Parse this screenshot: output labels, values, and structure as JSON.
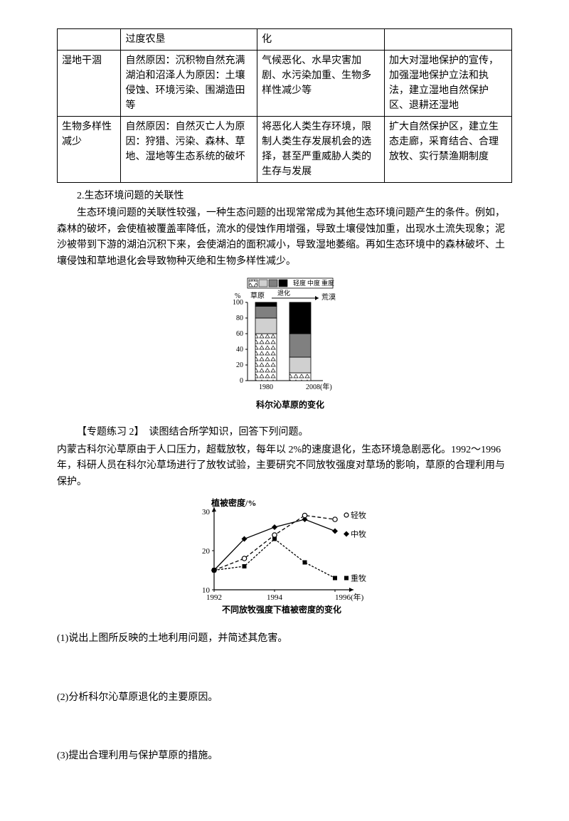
{
  "table": {
    "row0": {
      "c1": "",
      "c2": "过度农垦",
      "c3": "化",
      "c4": ""
    },
    "row1": {
      "c1": "湿地干涸",
      "c2": "自然原因：沉积物自然充满湖泊和沼泽人为原因：土壤侵蚀、环境污染、围湖造田等",
      "c3": "气候恶化、水旱灾害加剧、水污染加重、生物多样性减少等",
      "c4": "加大对湿地保护的宣传，加强湿地保护立法和执法，建立湿地自然保护区、退耕还湿地"
    },
    "row2": {
      "c1": "生物多样性减少",
      "c2": "自然原因：自然灭亡人为原因：狩猎、污染、森林、草地、湿地等生态系统的破坏",
      "c3": "将恶化人类生存环境，限制人类生存发展机会的选择，甚至严重威胁人类的生存与发展",
      "c4": "扩大自然保护区，建立生态走廊，采育结合、合理放牧、实行禁渔期制度"
    }
  },
  "section2": {
    "heading": "2.生态环境问题的关联性",
    "p1": "生态环境问题的关联性较强，一种生态问题的出现常常成为其他生态环境问题产生的条件。例如，森林的破坏，会使植被覆盖率降低，流水的侵蚀作用增强，导致土壤侵蚀加重，出现水土流失现象；泥沙被带到下游的湖泊沉积下来，会使湖泊的面积减小，导致湿地萎缩。再如生态环境中的森林破坏、土壤侵蚀和草地退化会导致物种灭绝和生物多样性减少。"
  },
  "chart1": {
    "legend_items": [
      "轻度",
      "中度",
      "重度"
    ],
    "ylabel": "%",
    "left_label": "草原",
    "mid_label": "退化",
    "right_label": "荒漠",
    "ymax": 100,
    "ytick_step": 20,
    "yticks": [
      "100",
      "80",
      "60",
      "40",
      "20",
      "0"
    ],
    "xticks": [
      "1980",
      "2008(年)"
    ],
    "caption": "科尔沁草原的变化",
    "bar1_segments": [
      {
        "height": 60,
        "fill": "triangle"
      },
      {
        "height": 20,
        "fill": "ltgray"
      },
      {
        "height": 15,
        "fill": "gray"
      },
      {
        "height": 5,
        "fill": "black"
      }
    ],
    "bar2_segments": [
      {
        "height": 10,
        "fill": "triangle"
      },
      {
        "height": 20,
        "fill": "ltgray"
      },
      {
        "height": 30,
        "fill": "gray"
      },
      {
        "height": 40,
        "fill": "black"
      }
    ],
    "colors": {
      "triangle": "#ffffff",
      "ltgray": "#d0d0d0",
      "gray": "#808080",
      "black": "#000000"
    }
  },
  "exercise": {
    "label": "【专题练习 2】　读图结合所学知识，回答下列问题。",
    "intro": "内蒙古科尔沁草原由于人口压力，超载放牧，每年以 2%的速度退化，生态环境急剧恶化。1992～1996 年，科研人员在科尔沁草场进行了放牧试验，主要研究不同放牧强度对草场的影响，草原的合理利用与保护。"
  },
  "chart2": {
    "ylabel": "植被密度/%",
    "ymax": 30,
    "ymin": 10,
    "ytick_step": 10,
    "yticks": [
      "30",
      "20",
      "10"
    ],
    "xticks": [
      "1992",
      "1994",
      "1996(年)"
    ],
    "caption": "不同放牧强度下植被密度的变化",
    "series": {
      "light": {
        "label": "轻牧",
        "points": [
          [
            1992,
            15
          ],
          [
            1993,
            18
          ],
          [
            1994,
            24
          ],
          [
            1995,
            29
          ],
          [
            1996,
            28
          ]
        ],
        "marker": "circle",
        "dash": "5,3"
      },
      "mid": {
        "label": "中牧",
        "points": [
          [
            1992,
            15
          ],
          [
            1993,
            23
          ],
          [
            1994,
            26
          ],
          [
            1995,
            28
          ],
          [
            1996,
            25
          ]
        ],
        "marker": "diamond",
        "dash": "none"
      },
      "heavy": {
        "label": "重牧",
        "points": [
          [
            1992,
            15
          ],
          [
            1993,
            16
          ],
          [
            1994,
            23
          ],
          [
            1995,
            17
          ],
          [
            1996,
            13
          ]
        ],
        "marker": "square",
        "dash": "3,2"
      }
    },
    "colors": {
      "line": "#000000",
      "bg": "#ffffff"
    }
  },
  "questions": {
    "q1": "(1)说出上图所反映的土地利用问题，并简述其危害。",
    "q2": "(2)分析科尔沁草原退化的主要原因。",
    "q3": "(3)提出合理利用与保护草原的措施。"
  }
}
